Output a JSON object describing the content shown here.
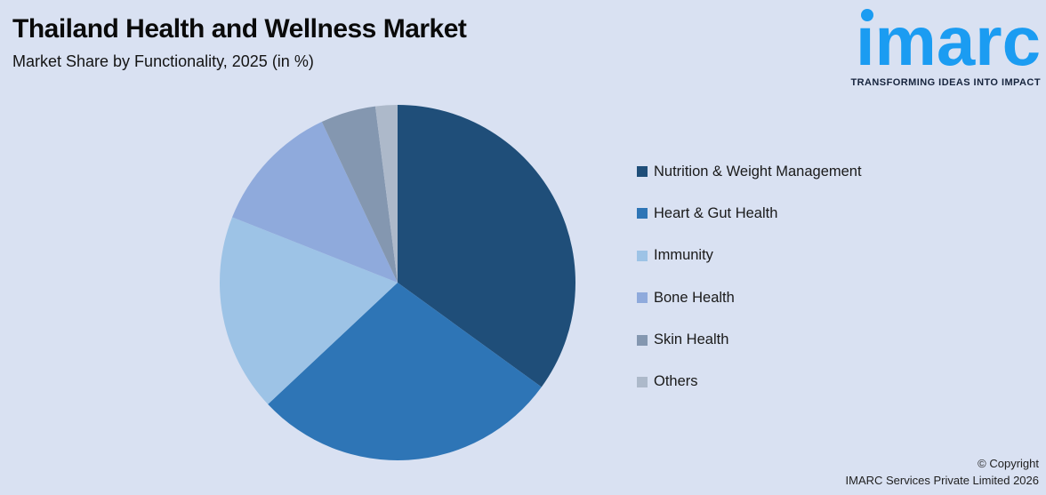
{
  "canvas": {
    "background": "#D9E1F2"
  },
  "header": {
    "title": "Thailand Health and Wellness Market",
    "subtitle": "Market Share by Functionality, 2025 (in %)"
  },
  "logo": {
    "brand": "imarc",
    "brand_display": "ımarc",
    "tagline": "TRANSFORMING IDEAS INTO IMPACT",
    "brand_color": "#1B9CF2",
    "tagline_color": "#16243D"
  },
  "chart_data": {
    "type": "pie",
    "title": "Thailand Health and Wellness Market",
    "subtitle": "Market Share by Functionality, 2025 (in %)",
    "unit": "%",
    "start_angle_deg": 0,
    "direction": "clockwise",
    "legend_position": "right",
    "data_labels_shown": false,
    "categories": [
      "Nutrition & Weight Management",
      "Heart & Gut Health",
      "Immunity",
      "Bone Health",
      "Skin Health",
      "Others"
    ],
    "values": [
      35,
      28,
      18,
      12,
      5,
      2
    ],
    "colors": [
      "#1F4E79",
      "#2E75B6",
      "#9DC3E6",
      "#8FAADC",
      "#8497B0",
      "#ADB9CA"
    ]
  },
  "footer": {
    "line1": "© Copyright",
    "line2": "IMARC Services Private Limited 2026"
  }
}
